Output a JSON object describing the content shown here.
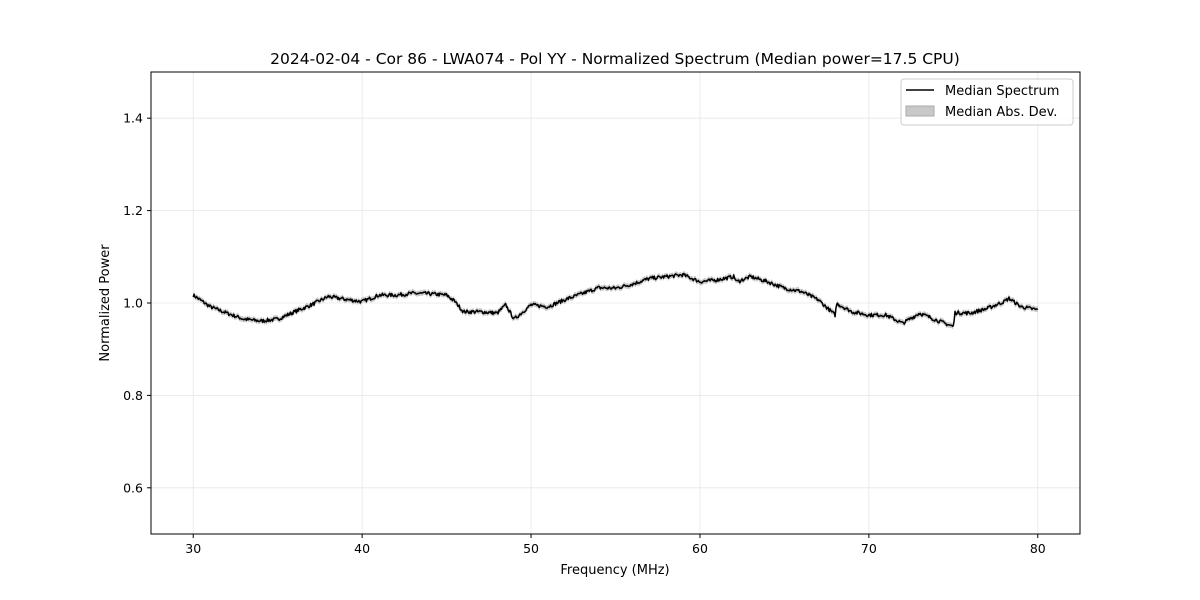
{
  "chart_data": {
    "type": "line",
    "title": "2024-02-04 - Cor 86 - LWA074 - Pol YY - Normalized Spectrum (Median power=17.5 CPU)",
    "xlabel": "Frequency (MHz)",
    "ylabel": "Normalized Power",
    "xlim": [
      27.5,
      82.5
    ],
    "ylim": [
      0.5,
      1.5
    ],
    "xticks": [
      30,
      40,
      50,
      60,
      70,
      80
    ],
    "yticks": [
      0.6,
      0.8,
      1.0,
      1.2,
      1.4
    ],
    "ytick_labels": [
      "0.6",
      "0.8",
      "1.0",
      "1.2",
      "1.4"
    ],
    "grid": true,
    "legend": {
      "placement": "top-right",
      "entries": [
        "Median Spectrum",
        "Median Abs. Dev."
      ]
    },
    "mad_halfwidth": 0.006,
    "series": [
      {
        "name": "Median Spectrum",
        "color": "#000000",
        "x": [
          30,
          31,
          32,
          33,
          34,
          35,
          36,
          37,
          38,
          39,
          40,
          41,
          42,
          43,
          44,
          45,
          45.5,
          46,
          47,
          48,
          48.5,
          49,
          50,
          51,
          52,
          53,
          54,
          55,
          56,
          57,
          58,
          59,
          60,
          61,
          62,
          62.2,
          63,
          64,
          65,
          66,
          67,
          68,
          68.1,
          69,
          70,
          71,
          72,
          73,
          74,
          75,
          75.1,
          76,
          77,
          78,
          78.3,
          79,
          80
        ],
        "y": [
          1.017,
          0.992,
          0.978,
          0.965,
          0.961,
          0.965,
          0.981,
          0.996,
          1.014,
          1.008,
          1.003,
          1.017,
          1.017,
          1.021,
          1.02,
          1.017,
          1.003,
          0.981,
          0.981,
          0.978,
          0.996,
          0.965,
          0.996,
          0.992,
          1.007,
          1.02,
          1.033,
          1.032,
          1.041,
          1.053,
          1.057,
          1.061,
          1.046,
          1.05,
          1.057,
          1.046,
          1.057,
          1.046,
          1.032,
          1.025,
          1.007,
          0.974,
          0.999,
          0.981,
          0.974,
          0.974,
          0.956,
          0.978,
          0.963,
          0.949,
          0.979,
          0.978,
          0.988,
          1.003,
          1.01,
          0.992,
          0.985
        ]
      },
      {
        "name": "Median Abs. Dev.",
        "color": "#c8c8c8"
      }
    ]
  }
}
